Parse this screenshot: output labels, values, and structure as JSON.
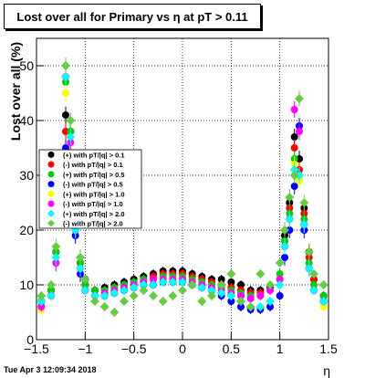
{
  "title": "Lost over all for Primary vs  η at pT > 0.11",
  "timestamp": "Tue Apr  3 12:09:34 2018",
  "chart_data": {
    "type": "scatter",
    "title": "Lost over all for Primary vs  η at pT > 0.11",
    "xlabel": "η",
    "ylabel": "Lost over all (%)",
    "xlim": [
      -1.5,
      1.5
    ],
    "ylim": [
      0,
      55
    ],
    "xticks": [
      -1.5,
      -1,
      -0.5,
      0,
      0.5,
      1,
      1.5
    ],
    "xtick_labels": [
      "−1.5",
      "−1",
      "−0.5",
      "0",
      "0.5",
      "1",
      "1.5"
    ],
    "yticks": [
      0,
      10,
      20,
      30,
      40,
      50
    ],
    "ytick_labels": [
      "0",
      "10",
      "20",
      "30",
      "40",
      "50"
    ],
    "grid": true,
    "legend_position": "left",
    "x": [
      -1.45,
      -1.35,
      -1.3,
      -1.25,
      -1.2,
      -1.15,
      -1.1,
      -1.05,
      -1.0,
      -0.9,
      -0.8,
      -0.7,
      -0.6,
      -0.5,
      -0.4,
      -0.3,
      -0.2,
      -0.1,
      0.0,
      0.1,
      0.2,
      0.3,
      0.4,
      0.5,
      0.6,
      0.7,
      0.8,
      0.9,
      1.0,
      1.05,
      1.1,
      1.15,
      1.2,
      1.25,
      1.3,
      1.35,
      1.45
    ],
    "series": [
      {
        "name": "(+) with pT/|q| > 0.1",
        "color": "#000000",
        "marker": "circle",
        "values": [
          7,
          9,
          16,
          30,
          41,
          38,
          22,
          14,
          11,
          9,
          9.5,
          10,
          10.5,
          11,
          11.5,
          12,
          12.5,
          12.5,
          12.5,
          12,
          11.5,
          11,
          11,
          10.5,
          10,
          9,
          9,
          9.5,
          11,
          19,
          25,
          37,
          33,
          24,
          16,
          11,
          8
        ]
      },
      {
        "name": "(-) with pT/|q| > 0.1",
        "color": "#ff0000",
        "marker": "circle",
        "values": [
          7,
          9,
          16,
          29,
          38,
          34,
          22,
          14,
          10,
          9,
          9,
          9.5,
          10,
          10.5,
          11,
          11.5,
          12,
          12,
          12,
          11.5,
          11,
          10.5,
          10,
          9.5,
          9,
          8.5,
          8.5,
          9,
          11,
          18,
          24,
          35,
          31,
          23,
          15,
          11,
          8
        ]
      },
      {
        "name": "(+) with pT/|q| > 0.5",
        "color": "#00cc00",
        "marker": "circle",
        "values": [
          7,
          9,
          16,
          30,
          47,
          38,
          22,
          14,
          10,
          9,
          9,
          9.5,
          10,
          10.5,
          11,
          11,
          11.5,
          11.5,
          11.5,
          11,
          10.5,
          10,
          9.5,
          9,
          8.5,
          8,
          8,
          9,
          12,
          18,
          23,
          33,
          30,
          22,
          14,
          10,
          8
        ]
      },
      {
        "name": "(-) with pT/|q| > 0.5",
        "color": "#0000ff",
        "marker": "circle",
        "values": [
          6,
          8,
          14,
          27,
          35,
          30,
          19,
          12,
          9,
          8,
          8,
          8.5,
          9,
          9.5,
          10,
          10,
          10.5,
          10.5,
          10.5,
          10,
          9.5,
          9,
          8,
          7,
          6,
          5.5,
          5.5,
          6,
          8,
          15,
          20,
          28,
          39,
          20,
          13,
          9,
          7
        ]
      },
      {
        "name": "(+) with pT/|q| > 1.0",
        "color": "#ffff00",
        "marker": "circle",
        "values": [
          5.5,
          8,
          14,
          28,
          45,
          36,
          20,
          13,
          9,
          8,
          8.5,
          9,
          9.5,
          10,
          10.5,
          11,
          11,
          11,
          11,
          10.5,
          10,
          9.5,
          9,
          8.5,
          8,
          7.5,
          8,
          9,
          11,
          17,
          22,
          32,
          29,
          21,
          13,
          9,
          6
        ]
      },
      {
        "name": "(-) with pT/|q| > 1.0",
        "color": "#ff00ff",
        "marker": "circle",
        "values": [
          6,
          8,
          14,
          28,
          48,
          36,
          20,
          13,
          9,
          8,
          8.5,
          9,
          9.5,
          10,
          10.5,
          11,
          11,
          11,
          11,
          10.5,
          10,
          9.5,
          9,
          8.5,
          8,
          7.5,
          8,
          9,
          11,
          17,
          22,
          42,
          38,
          21,
          13,
          9,
          7
        ]
      },
      {
        "name": "(+) with pT/|q| > 2.0",
        "color": "#00ffff",
        "marker": "diamond",
        "values": [
          7,
          8,
          15,
          29,
          48,
          37,
          20,
          13,
          9,
          8,
          8,
          8.5,
          9,
          9.5,
          10,
          10,
          10.5,
          10.5,
          10.5,
          10,
          9.5,
          9,
          8.5,
          8,
          7,
          6,
          6,
          7,
          10,
          17,
          22,
          31,
          30,
          21,
          13,
          9,
          7
        ]
      },
      {
        "name": "(-) with pT/|q| > 2.0",
        "color": "#66cc44",
        "marker": "diamond",
        "values": [
          8,
          10,
          17,
          32,
          50,
          40,
          24,
          15,
          11,
          7,
          6,
          5,
          7,
          8,
          9,
          8,
          7,
          8,
          9,
          10,
          7,
          8,
          10,
          12,
          7,
          6,
          12,
          10,
          14,
          20,
          26,
          30,
          44,
          25,
          16,
          12,
          10
        ]
      }
    ]
  }
}
